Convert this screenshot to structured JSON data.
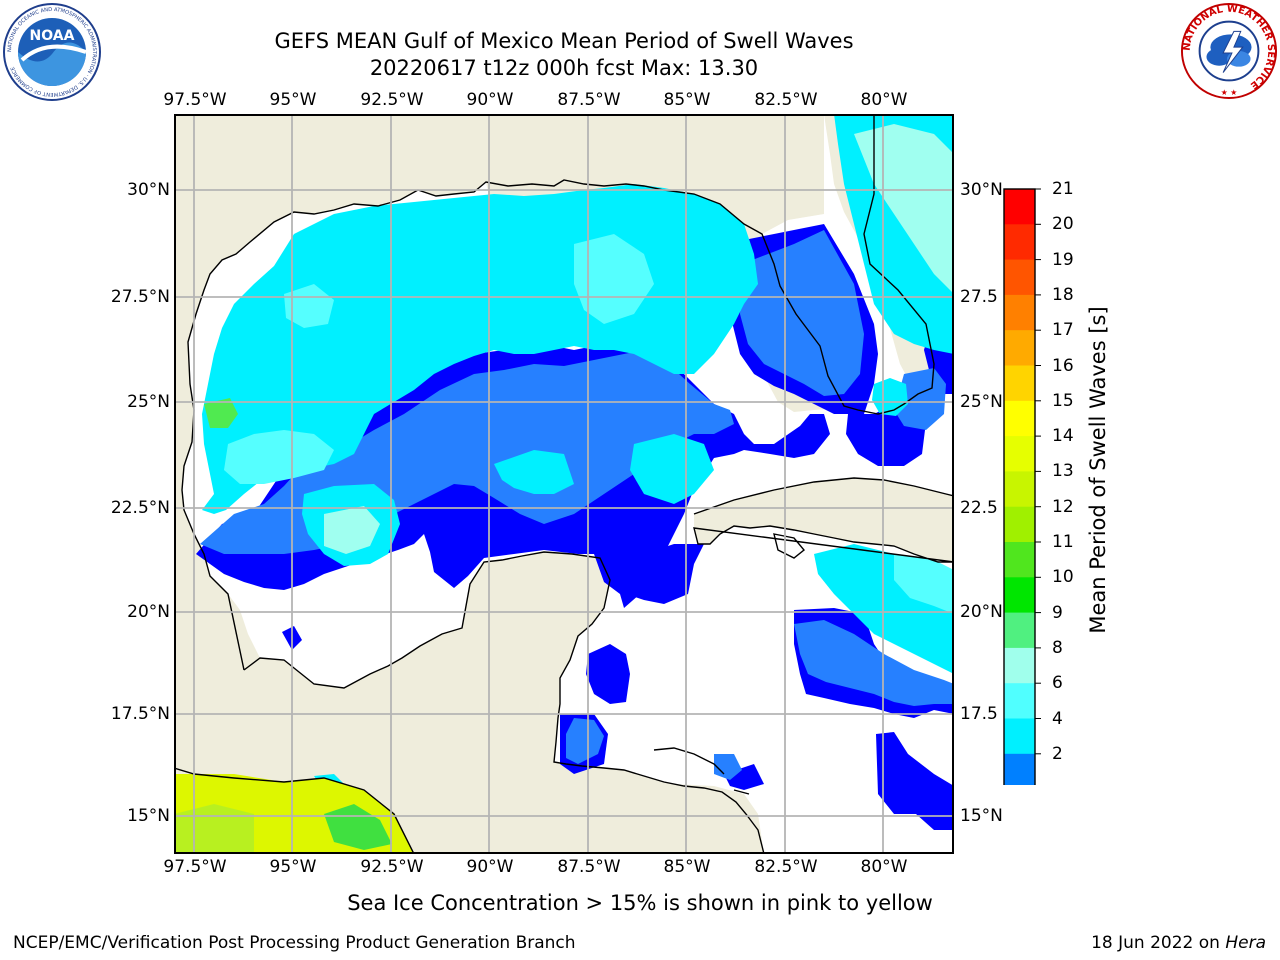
{
  "title_line1": "GEFS MEAN Gulf of Mexico Mean Period of Swell Waves",
  "title_line2": "20220617 t12z 000h fcst   Max: 13.30",
  "lon_labels": [
    "97.5°W",
    "95°W",
    "92.5°W",
    "90°W",
    "87.5°W",
    "85°W",
    "82.5°W",
    "80°W"
  ],
  "lat_labels_left": [
    "30°N",
    "27.5°N",
    "25°N",
    "22.5°N",
    "20°N",
    "17.5°N",
    "15°N"
  ],
  "lat_labels_right": [
    "30°N",
    "27.5",
    "25°N",
    "22.5",
    "20°N",
    "17.5",
    "15°N"
  ],
  "colorbar": {
    "label": "Mean Period of Swell Waves [s]",
    "ticks": [
      "21",
      "20",
      "19",
      "18",
      "17",
      "16",
      "15",
      "14",
      "13",
      "12",
      "11",
      "10",
      "9",
      "8",
      "6",
      "4",
      "2"
    ],
    "colors": [
      "#ff0000",
      "#ff2a00",
      "#ff5500",
      "#ff8000",
      "#ffaa00",
      "#ffd400",
      "#ffff00",
      "#e6ff00",
      "#c8f500",
      "#a0f000",
      "#50e61e",
      "#00e600",
      "#50f080",
      "#a0ffec",
      "#50ffff",
      "#00f0ff",
      "#0080ff"
    ],
    "under_color": "#0000ff"
  },
  "map_colors": {
    "land": "#efeddc",
    "coast": "#000000",
    "grid": "#b4b4b4",
    "c2": "#0000ff",
    "c4": "#2680ff",
    "c6": "#00f0ff",
    "c8": "#55ffff",
    "c9": "#a0fff0",
    "c11": "#50ea50",
    "c13": "#b8f020",
    "c14": "#ddf700",
    "c12": "#40e040"
  },
  "ice_note": "Sea Ice Concentration > 15% is shown in pink to yellow",
  "footer_left": "NCEP/EMC/Verification Post Processing Product Generation Branch",
  "footer_right_date": "18 Jun 2022 on ",
  "footer_right_host": "Hera",
  "noaa_logo": {
    "name": "NOAA",
    "ring_text": "NATIONAL OCEANIC AND ATMOSPHERIC ADMINISTRATION · U.S. DEPARTMENT OF COMMERCE"
  },
  "nws_logo": {
    "ring_text": "NATIONAL WEATHER SERVICE"
  }
}
